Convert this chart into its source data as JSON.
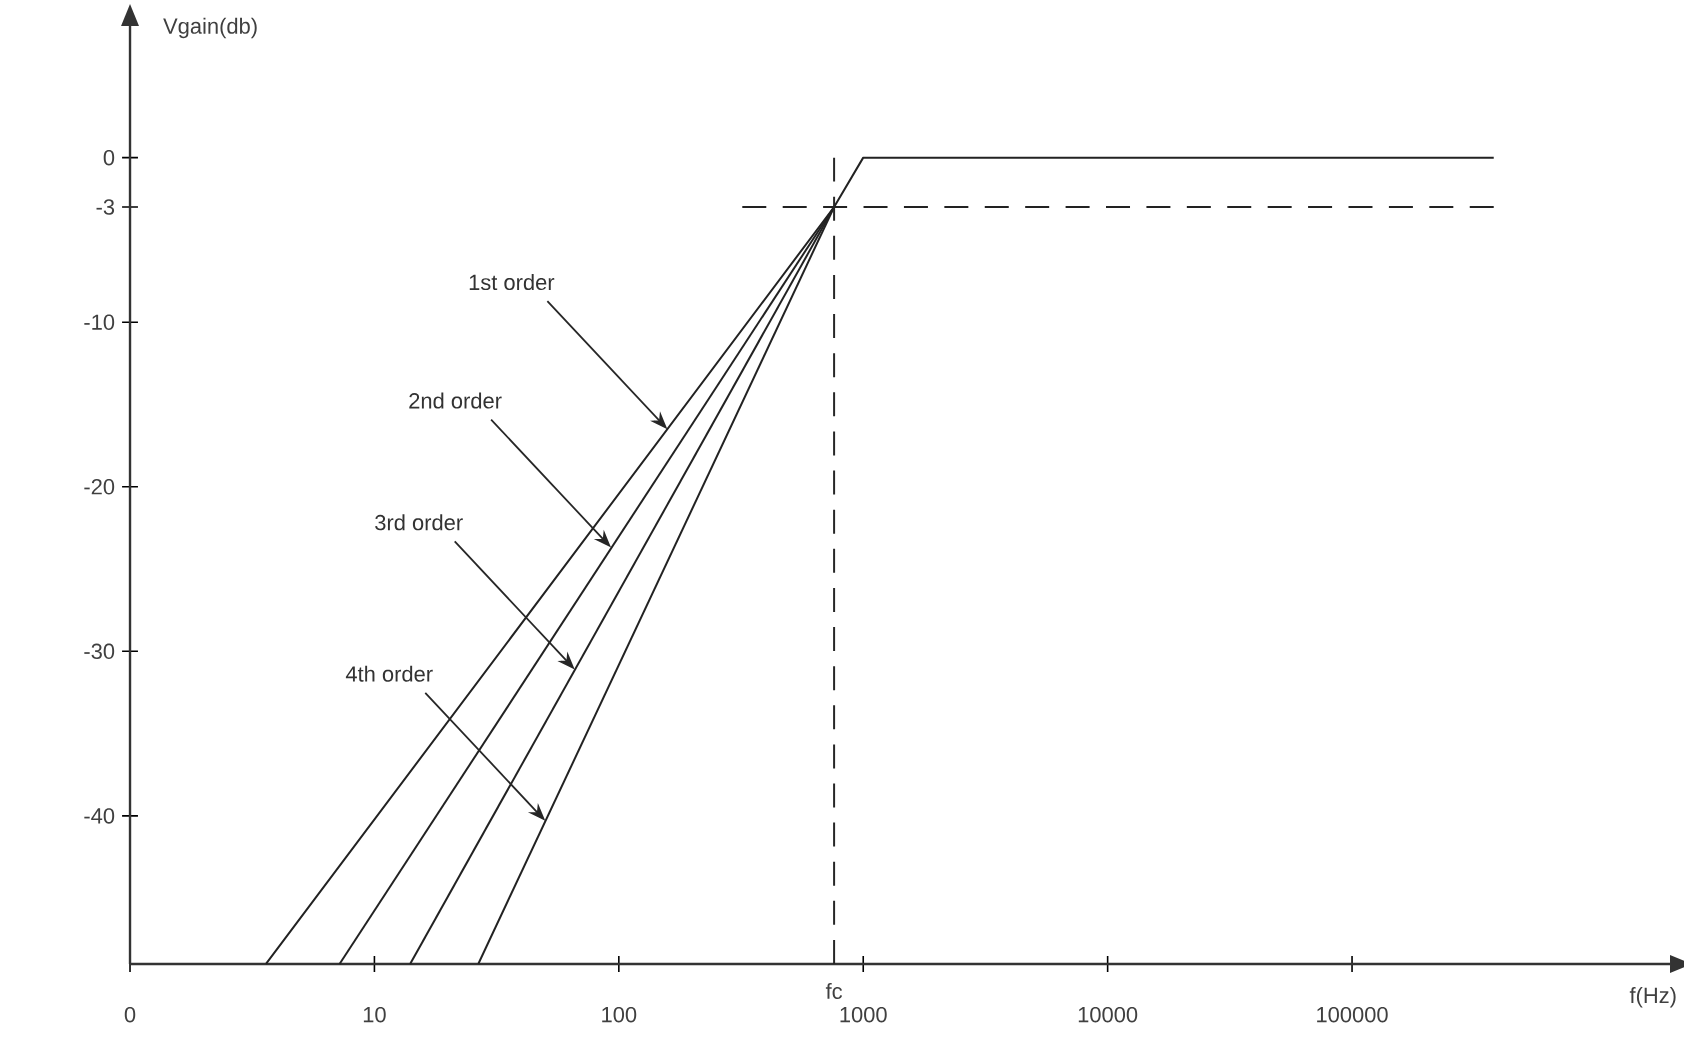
{
  "chart_data": {
    "type": "line",
    "xlabel": "f(Hz)",
    "ylabel": "Vgain(db)",
    "log": "x",
    "xlim": [
      0,
      2000000
    ],
    "ylim": [
      -49,
      8
    ],
    "xticks": [
      0,
      10,
      100,
      1000,
      10000,
      100000
    ],
    "yticks": [
      0,
      -3,
      -10,
      -20,
      -30,
      -40
    ],
    "series": [
      {
        "color": "#222222",
        "x": [
          3.6,
          760,
          1000,
          380000
        ],
        "values": [
          -49,
          -3,
          0,
          0
        ]
      },
      {
        "color": "#222222",
        "x": [
          7.2,
          760
        ],
        "values": [
          -49,
          -3
        ]
      },
      {
        "color": "#222222",
        "x": [
          14,
          760
        ],
        "values": [
          -49,
          -3
        ]
      },
      {
        "color": "#222222",
        "x": [
          26.6,
          760
        ],
        "values": [
          -49,
          -3
        ]
      },
      {
        "color": "#222222",
        "x": [
          320,
          380000
        ],
        "values": [
          -3,
          -3
        ],
        "line_style": "dashed"
      }
    ],
    "ref_lines": [
      {
        "axis": "x",
        "value": 760,
        "label": "fc",
        "line_style": "dashed"
      }
    ],
    "annotations": [
      {
        "text": "1st order",
        "x": 158,
        "y": -16.5
      },
      {
        "text": "2nd order",
        "x": 93,
        "y": -23.7
      },
      {
        "text": "3rd order",
        "x": 66,
        "y": -31.1
      },
      {
        "text": "4th order",
        "x": 50,
        "y": -40.3
      }
    ]
  }
}
